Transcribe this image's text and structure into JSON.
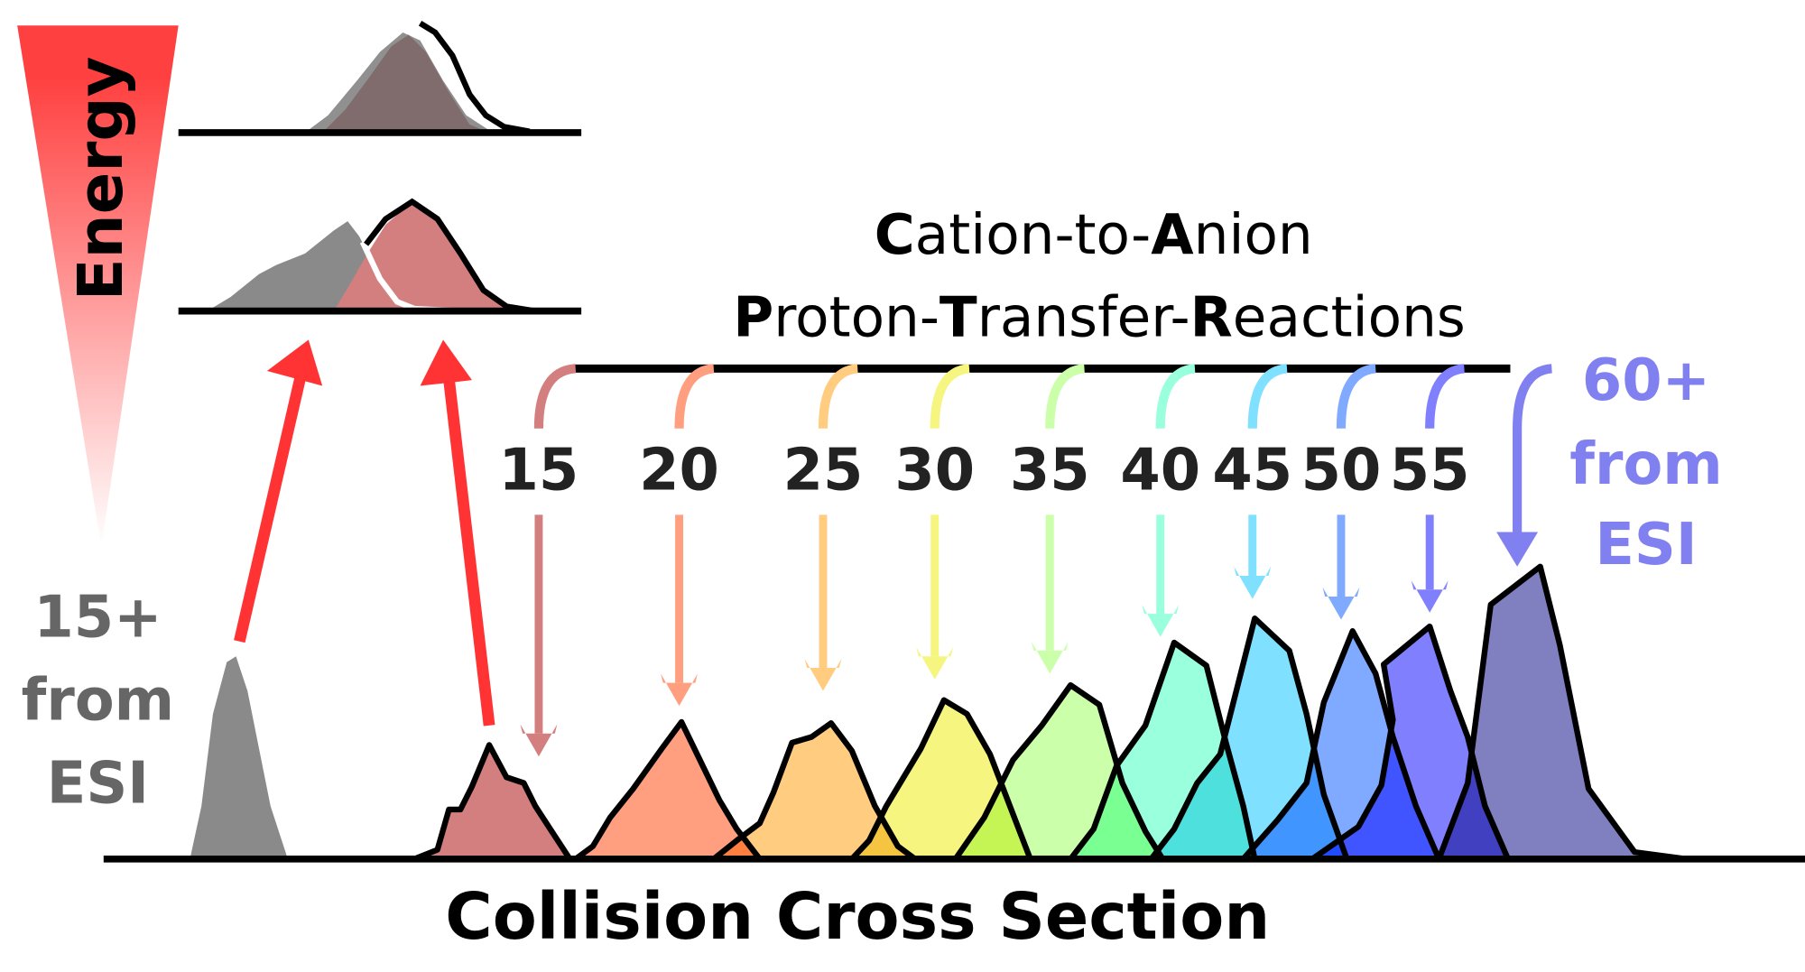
{
  "energy_label": "Energy",
  "esi_low": {
    "lines": [
      "15+",
      "from",
      "ESI"
    ],
    "color": "#666666"
  },
  "esi_high": {
    "lines": [
      "60+",
      "from",
      "ESI"
    ],
    "color": "#8080f0"
  },
  "title": {
    "line1": [
      {
        "t": "C",
        "b": true
      },
      {
        "t": "ation-to-",
        "b": false
      },
      {
        "t": "A",
        "b": true
      },
      {
        "t": "nion",
        "b": false
      }
    ],
    "line2": [
      {
        "t": "P",
        "b": true
      },
      {
        "t": "roton-",
        "b": false
      },
      {
        "t": "T",
        "b": true
      },
      {
        "t": "ransfer-",
        "b": false
      },
      {
        "t": "R",
        "b": true
      },
      {
        "t": "eactions",
        "b": false
      }
    ]
  },
  "x_axis_label": "Collision Cross Section",
  "colors": {
    "energy_gradient_top": "#ff4040",
    "energy_arrows": "#ff3333",
    "esi_peak": "#8a8a8a"
  },
  "charge_states": [
    {
      "label": "15",
      "color": "#d47f7f"
    },
    {
      "label": "20",
      "color": "#ff9f80"
    },
    {
      "label": "25",
      "color": "#ffcc80"
    },
    {
      "label": "30",
      "color": "#f5f580"
    },
    {
      "label": "35",
      "color": "#ccffaa"
    },
    {
      "label": "40",
      "color": "#99ffdd"
    },
    {
      "label": "45",
      "color": "#80e0ff"
    },
    {
      "label": "50",
      "color": "#80aaff"
    },
    {
      "label": "55",
      "color": "#8080ff"
    },
    {
      "label": "60+",
      "color": "#8080c0"
    }
  ]
}
